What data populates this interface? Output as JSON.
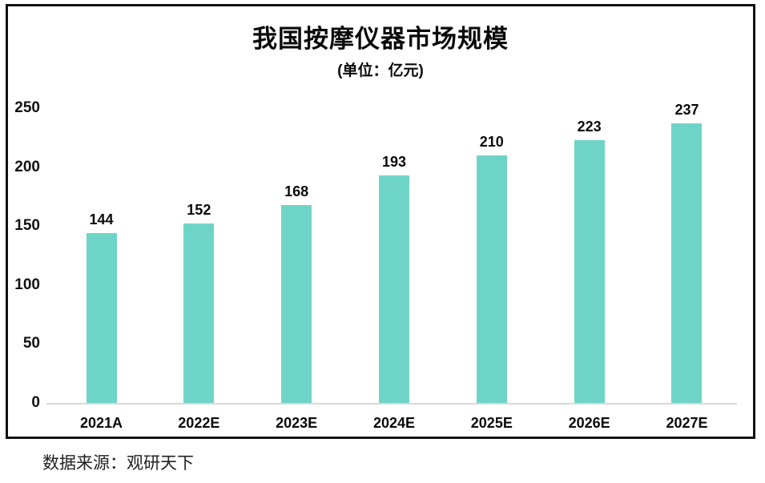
{
  "chart_data": {
    "type": "bar",
    "title": "我国按摩仪器市场规模",
    "subtitle": "(单位：亿元)",
    "categories": [
      "2021A",
      "2022E",
      "2023E",
      "2024E",
      "2025E",
      "2026E",
      "2027E"
    ],
    "values": [
      144,
      152,
      168,
      193,
      210,
      223,
      237
    ],
    "yticks": [
      0,
      50,
      100,
      150,
      200,
      250
    ],
    "ylim": [
      0,
      250
    ],
    "xlabel": "",
    "ylabel": "",
    "grid": false,
    "legend": "none",
    "data_labels": true,
    "bar_color": "#6fd4c8",
    "axis_line_color": "#d9d9d9",
    "frame_border_color": "#111111",
    "text_color": "#0a0a0a"
  },
  "footer": {
    "source_label": "数据来源：观研天下"
  }
}
